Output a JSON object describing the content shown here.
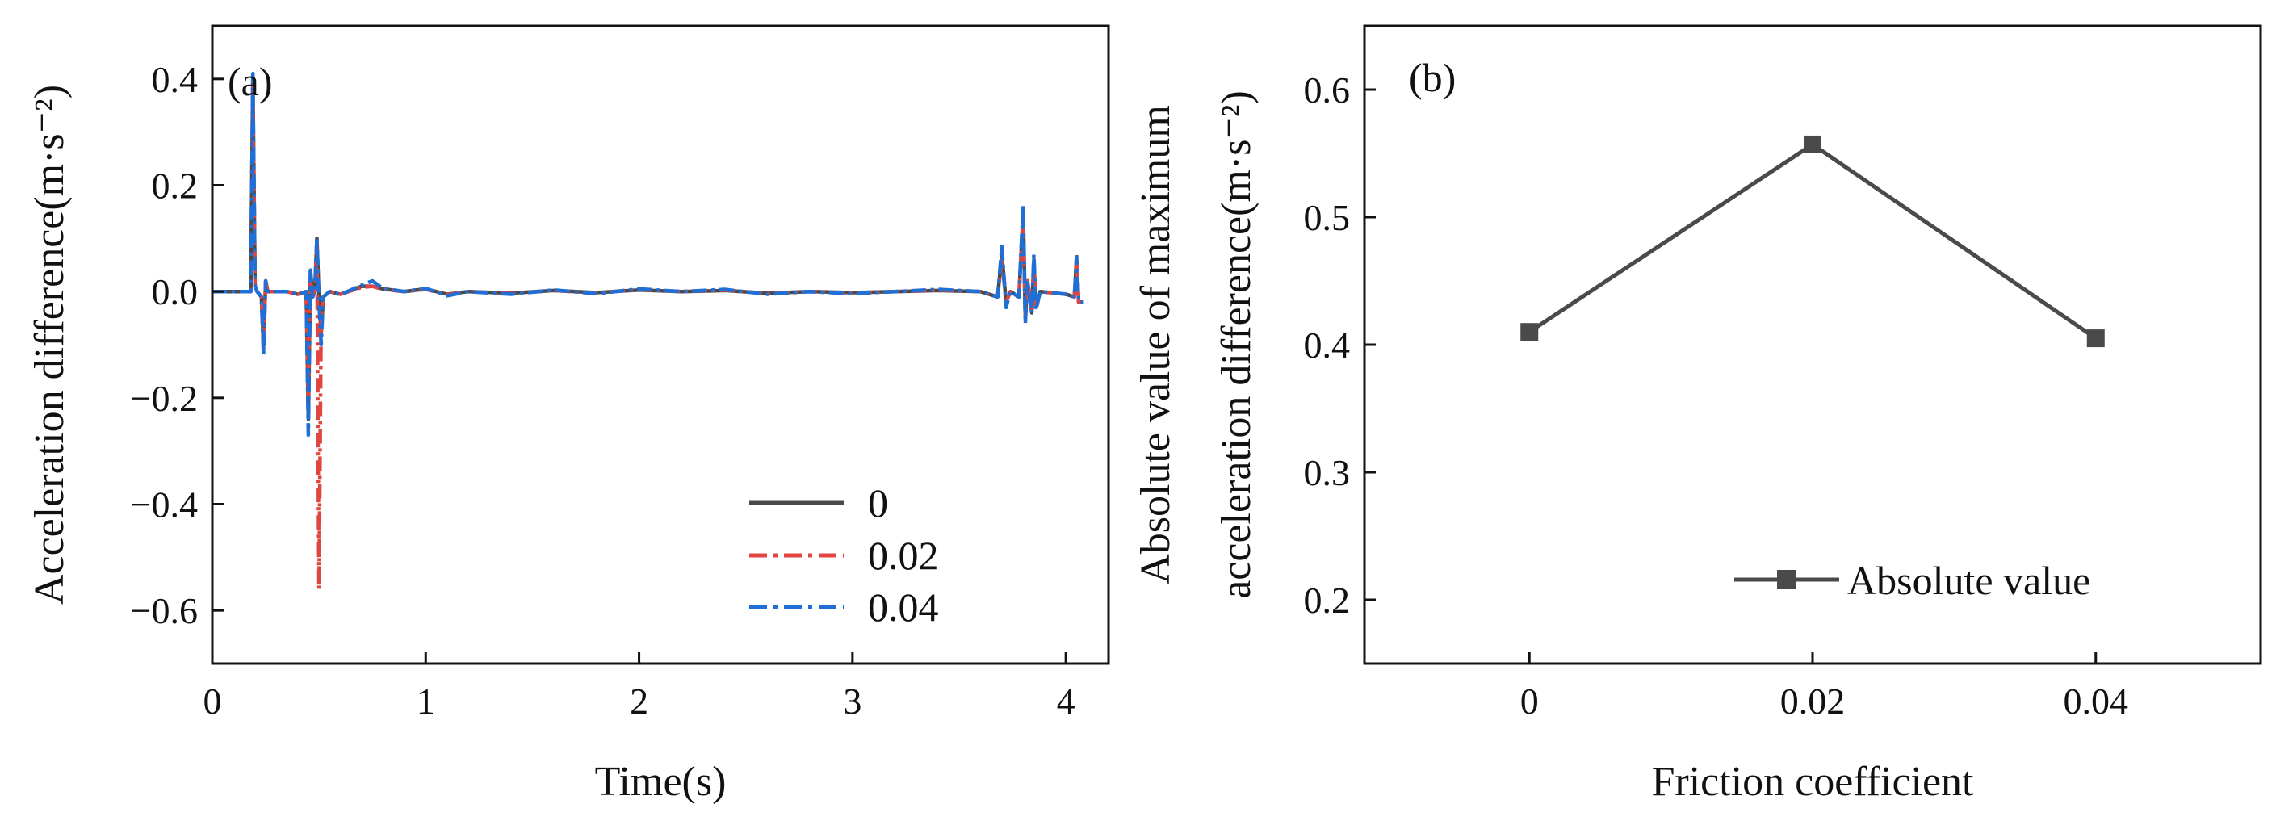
{
  "chart_data": [
    {
      "type": "line",
      "panel_label": "(a)",
      "title": "",
      "xlabel": "Time(s)",
      "ylabel": "Acceleration difference(m·s⁻²)",
      "xlim": [
        0,
        4.2
      ],
      "ylim": [
        -0.7,
        0.5
      ],
      "xticks": [
        0,
        1,
        2,
        3,
        4
      ],
      "yticks": [
        0.4,
        0.2,
        0.0,
        -0.2,
        -0.4,
        -0.6
      ],
      "ytick_labels": [
        "0.4",
        "0.2",
        "0.0",
        "−0.2",
        "−0.4",
        "−0.6"
      ],
      "legend_position": "lower-right",
      "series": [
        {
          "name": "0",
          "style": "solid",
          "color": "#4a4a4a",
          "x": [
            0.0,
            0.18,
            0.19,
            0.2,
            0.21,
            0.23,
            0.24,
            0.25,
            0.26,
            0.3,
            0.35,
            0.4,
            0.44,
            0.45,
            0.46,
            0.47,
            0.48,
            0.49,
            0.5,
            0.51,
            0.52,
            0.55,
            0.6,
            0.7,
            0.75,
            0.8,
            0.9,
            1.0,
            1.1,
            1.2,
            1.4,
            1.6,
            1.8,
            2.0,
            2.2,
            2.4,
            2.6,
            2.8,
            3.0,
            3.2,
            3.4,
            3.6,
            3.68,
            3.7,
            3.72,
            3.74,
            3.78,
            3.8,
            3.81,
            3.82,
            3.84,
            3.85,
            3.86,
            3.88,
            4.0,
            4.04,
            4.05,
            4.06,
            4.08
          ],
          "y": [
            0.0,
            0.0,
            0.4,
            0.01,
            0.0,
            -0.01,
            -0.1,
            0.02,
            0.0,
            0.0,
            0.0,
            -0.005,
            0.0,
            -0.24,
            0.04,
            -0.01,
            0.0,
            0.1,
            -0.01,
            -0.08,
            -0.01,
            0.0,
            -0.005,
            0.01,
            0.01,
            0.005,
            0.0,
            0.005,
            -0.005,
            0.0,
            -0.003,
            0.002,
            -0.002,
            0.003,
            0.0,
            0.002,
            -0.003,
            0.0,
            -0.002,
            0.0,
            0.002,
            0.0,
            -0.01,
            0.07,
            -0.02,
            0.0,
            -0.01,
            0.15,
            -0.05,
            0.02,
            -0.04,
            0.06,
            -0.03,
            0.0,
            -0.005,
            -0.01,
            0.06,
            -0.02,
            -0.02
          ]
        },
        {
          "name": "0.02",
          "style": "dash-dot",
          "color": "#e0453f",
          "x": [
            0.0,
            0.18,
            0.19,
            0.2,
            0.21,
            0.23,
            0.24,
            0.25,
            0.26,
            0.3,
            0.35,
            0.4,
            0.44,
            0.45,
            0.46,
            0.47,
            0.48,
            0.49,
            0.5,
            0.51,
            0.52,
            0.55,
            0.6,
            0.7,
            0.75,
            0.8,
            0.9,
            1.0,
            1.1,
            1.2,
            1.4,
            1.6,
            1.8,
            2.0,
            2.2,
            2.4,
            2.6,
            2.8,
            3.0,
            3.2,
            3.4,
            3.6,
            3.68,
            3.7,
            3.72,
            3.74,
            3.78,
            3.8,
            3.81,
            3.82,
            3.84,
            3.85,
            3.86,
            3.88,
            4.0,
            4.04,
            4.05,
            4.06,
            4.08
          ],
          "y": [
            0.0,
            0.0,
            0.39,
            0.01,
            0.0,
            -0.01,
            -0.11,
            0.02,
            0.0,
            0.0,
            0.0,
            -0.005,
            0.0,
            -0.2,
            0.03,
            -0.01,
            0.0,
            0.09,
            -0.56,
            -0.05,
            -0.01,
            0.0,
            -0.005,
            0.008,
            0.01,
            0.004,
            0.0,
            0.004,
            -0.006,
            0.0,
            -0.004,
            0.002,
            -0.003,
            0.004,
            0.0,
            0.003,
            -0.004,
            0.0,
            -0.003,
            0.0,
            0.003,
            0.0,
            -0.01,
            0.06,
            -0.02,
            0.0,
            -0.01,
            0.14,
            -0.05,
            0.02,
            -0.04,
            0.05,
            -0.03,
            0.0,
            -0.005,
            -0.01,
            0.07,
            -0.02,
            -0.02
          ]
        },
        {
          "name": "0.04",
          "style": "dash-dot",
          "color": "#1f6fd6",
          "x": [
            0.0,
            0.18,
            0.19,
            0.2,
            0.21,
            0.23,
            0.24,
            0.25,
            0.26,
            0.3,
            0.35,
            0.4,
            0.44,
            0.45,
            0.46,
            0.47,
            0.48,
            0.49,
            0.5,
            0.51,
            0.52,
            0.55,
            0.6,
            0.7,
            0.75,
            0.8,
            0.9,
            1.0,
            1.1,
            1.2,
            1.4,
            1.6,
            1.8,
            2.0,
            2.2,
            2.4,
            2.6,
            2.8,
            3.0,
            3.2,
            3.4,
            3.6,
            3.68,
            3.7,
            3.72,
            3.74,
            3.78,
            3.8,
            3.81,
            3.82,
            3.84,
            3.85,
            3.86,
            3.88,
            4.0,
            4.04,
            4.05,
            4.06,
            4.08
          ],
          "y": [
            0.0,
            0.0,
            0.41,
            0.01,
            0.0,
            -0.01,
            -0.12,
            0.02,
            0.0,
            0.0,
            0.0,
            -0.005,
            0.0,
            -0.27,
            0.04,
            -0.01,
            0.0,
            0.1,
            -0.02,
            -0.1,
            -0.01,
            0.0,
            -0.006,
            0.012,
            0.02,
            0.006,
            0.0,
            0.006,
            -0.008,
            0.0,
            -0.005,
            0.003,
            -0.004,
            0.005,
            0.0,
            0.004,
            -0.005,
            0.0,
            -0.004,
            0.0,
            0.004,
            0.0,
            -0.01,
            0.085,
            -0.03,
            0.0,
            -0.01,
            0.165,
            -0.06,
            0.02,
            -0.04,
            0.07,
            -0.035,
            0.0,
            -0.005,
            -0.01,
            0.065,
            -0.02,
            -0.02
          ]
        }
      ]
    },
    {
      "type": "line",
      "panel_label": "(b)",
      "title": "",
      "xlabel": "Friction coefficient",
      "ylabel_line1": "Absolute value of maximum",
      "ylabel_line2": "acceleration difference(m·s⁻²)",
      "categories": [
        "0",
        "0.02",
        "0.04"
      ],
      "ylim": [
        0.15,
        0.65
      ],
      "yticks": [
        0.6,
        0.5,
        0.4,
        0.3,
        0.2
      ],
      "ytick_labels": [
        "0.6",
        "0.5",
        "0.4",
        "0.3",
        "0.2"
      ],
      "legend_position": "lower-right",
      "series": [
        {
          "name": "Absolute value",
          "color": "#4a4a4a",
          "marker": "square",
          "values": [
            0.41,
            0.557,
            0.405
          ]
        }
      ]
    }
  ]
}
